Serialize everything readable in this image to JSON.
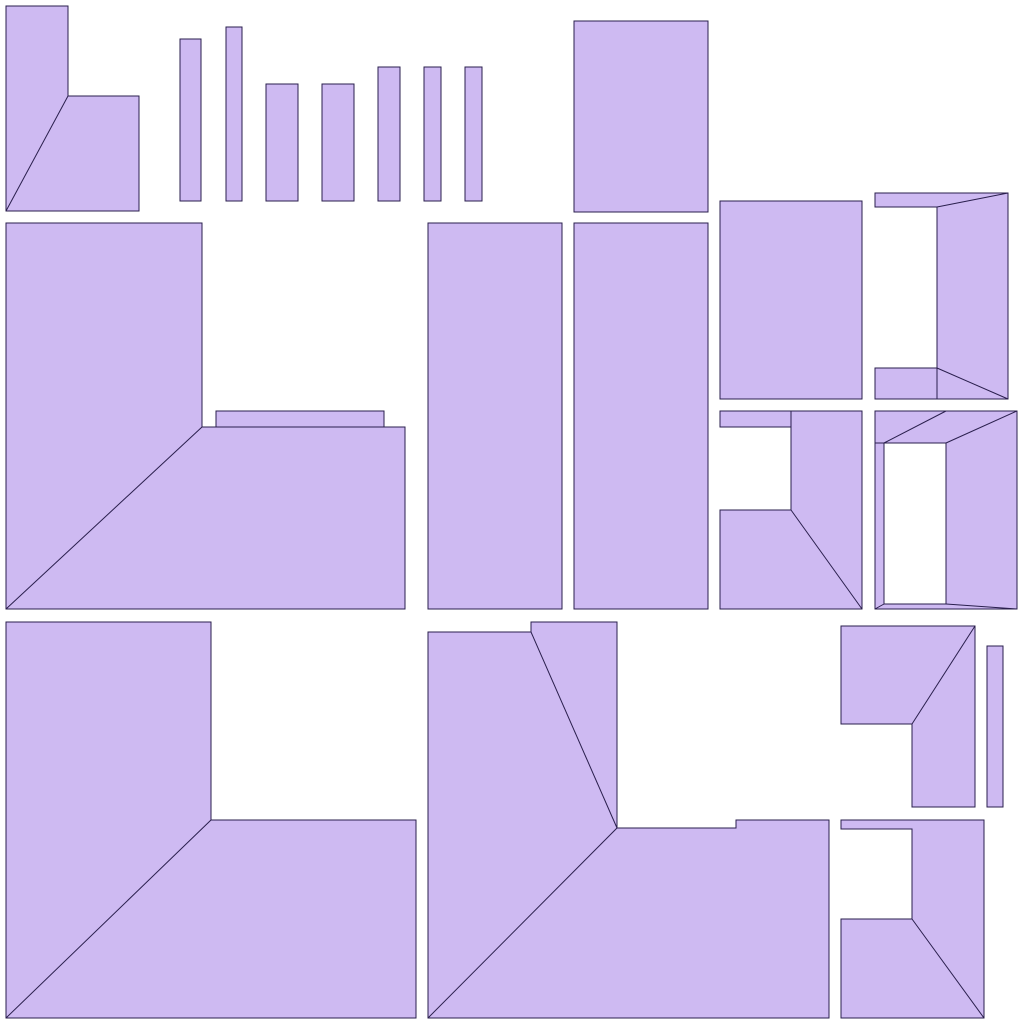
{
  "colors": {
    "background": "#ffffff",
    "island_fill": "#cebaf2",
    "island_outline": "#2a1f4d"
  }
}
